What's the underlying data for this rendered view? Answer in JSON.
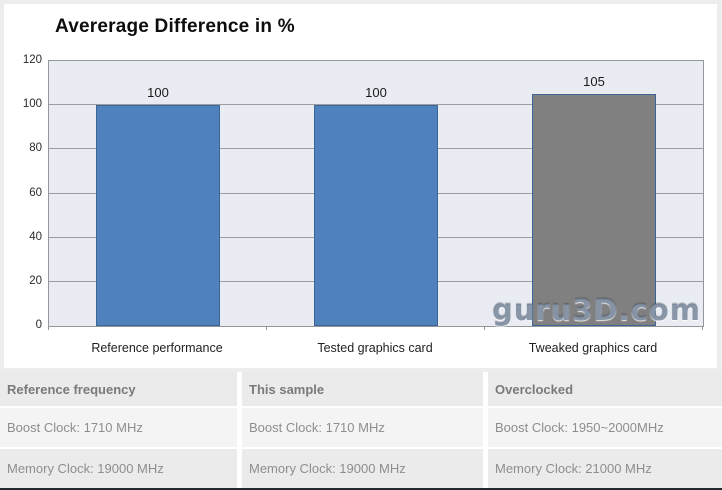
{
  "chart_data": {
    "type": "bar",
    "title": "Avererage Difference in %",
    "categories": [
      "Reference performance",
      "Tested graphics card",
      "Tweaked graphics card"
    ],
    "values": [
      100,
      100,
      105
    ],
    "data_labels": [
      "100",
      "100",
      "105"
    ],
    "bar_colors": [
      "#4f81bd",
      "#4f81bd",
      "#808080"
    ],
    "bar_border_color": "#3d6596",
    "ylim": [
      0,
      120
    ],
    "yticks": [
      0,
      20,
      40,
      60,
      80,
      100,
      120
    ],
    "grid": true,
    "plot_bg": "#e9ecf3",
    "grid_color": "#9b9da1",
    "legend": "none",
    "xlabel": "",
    "ylabel": ""
  },
  "watermark": {
    "text": "guru3D.com"
  },
  "table": {
    "headers": [
      "Reference frequency",
      "This sample",
      "Overclocked"
    ],
    "rows": [
      [
        "Boost Clock: 1710 MHz",
        "Boost Clock: 1710 MHz",
        "Boost Clock: 1950~2000MHz"
      ],
      [
        "Memory Clock: 19000 MHz",
        "Memory Clock: 19000 MHz",
        "Memory Clock: 21000 MHz"
      ]
    ]
  }
}
